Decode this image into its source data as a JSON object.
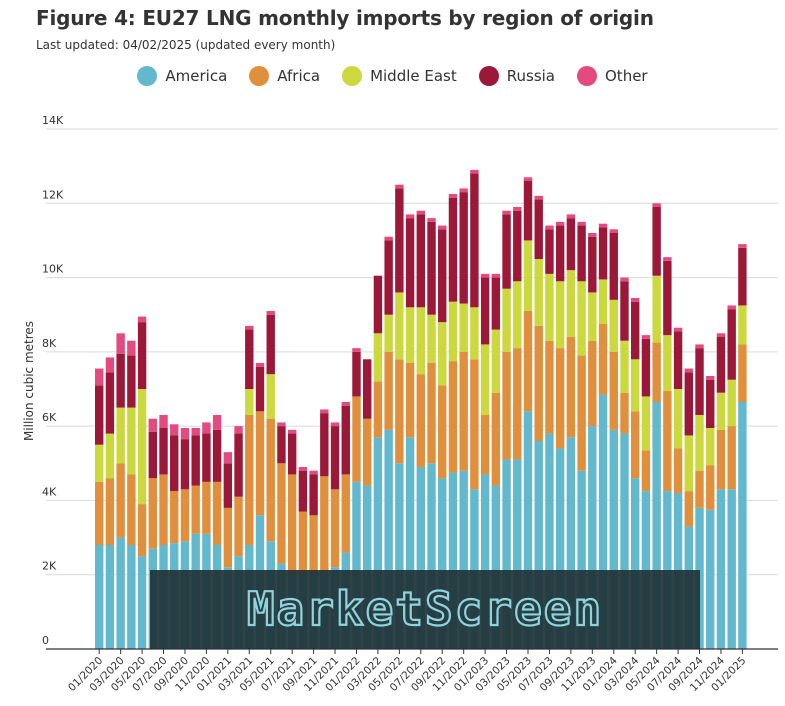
{
  "title": "Figure 4: EU27 LNG monthly imports by region of origin",
  "subtitle": "Last updated: 04/02/2025 (updated every month)",
  "watermark": "MarketScreen",
  "colors": {
    "America": "#62b8cc",
    "Africa": "#e08f3c",
    "Middle East": "#cbd83e",
    "Russia": "#9c1838",
    "Other": "#e34a80",
    "grid": "#d9d9d9",
    "axis": "#333333",
    "watermark_bg": "#1f3337",
    "watermark_text": "#8fd3dc"
  },
  "legend": [
    {
      "label": "America",
      "color": "#62b8cc"
    },
    {
      "label": "Africa",
      "color": "#e08f3c"
    },
    {
      "label": "Middle East",
      "color": "#cbd83e"
    },
    {
      "label": "Russia",
      "color": "#9c1838"
    },
    {
      "label": "Other",
      "color": "#e34a80"
    }
  ],
  "chart_data": {
    "type": "bar",
    "stacked": true,
    "title": "Figure 4: EU27 LNG monthly imports by region of origin",
    "xlabel": "",
    "ylabel": "Million cubic metres",
    "ylim": [
      0,
      14000
    ],
    "yticks": [
      0,
      2000,
      4000,
      6000,
      8000,
      10000,
      12000,
      14000
    ],
    "ytick_labels": [
      "0",
      "2K",
      "4K",
      "6K",
      "8K",
      "10K",
      "12K",
      "14K"
    ],
    "grid": true,
    "legend_position": "top",
    "categories": [
      "01/2020",
      "02/2020",
      "03/2020",
      "04/2020",
      "05/2020",
      "06/2020",
      "07/2020",
      "08/2020",
      "09/2020",
      "10/2020",
      "11/2020",
      "12/2020",
      "01/2021",
      "02/2021",
      "03/2021",
      "04/2021",
      "05/2021",
      "06/2021",
      "07/2021",
      "08/2021",
      "09/2021",
      "10/2021",
      "11/2021",
      "12/2021",
      "01/2022",
      "02/2022",
      "03/2022",
      "04/2022",
      "05/2022",
      "06/2022",
      "07/2022",
      "08/2022",
      "09/2022",
      "10/2022",
      "11/2022",
      "12/2022",
      "01/2023",
      "02/2023",
      "03/2023",
      "04/2023",
      "05/2023",
      "06/2023",
      "07/2023",
      "08/2023",
      "09/2023",
      "10/2023",
      "11/2023",
      "12/2023",
      "01/2024",
      "02/2024",
      "03/2024",
      "04/2024",
      "05/2024",
      "06/2024",
      "07/2024",
      "08/2024",
      "09/2024",
      "10/2024",
      "11/2024",
      "12/2024",
      "01/2025"
    ],
    "x_tick_labels": [
      "01/2020",
      "03/2020",
      "05/2020",
      "07/2020",
      "09/2020",
      "11/2020",
      "01/2021",
      "03/2021",
      "05/2021",
      "07/2021",
      "09/2021",
      "11/2021",
      "01/2022",
      "03/2022",
      "05/2022",
      "07/2022",
      "09/2022",
      "11/2022",
      "01/2023",
      "03/2023",
      "05/2023",
      "07/2023",
      "09/2023",
      "11/2023",
      "01/2024",
      "03/2024",
      "05/2024",
      "07/2024",
      "09/2024",
      "11/2024",
      "01/2025"
    ],
    "series": [
      {
        "name": "America",
        "values": [
          2800,
          2800,
          3000,
          2800,
          2500,
          2700,
          2800,
          2850,
          2900,
          3100,
          3100,
          2800,
          2200,
          2500,
          2800,
          3600,
          2900,
          2300,
          2000,
          2000,
          2000,
          2050,
          2200,
          2600,
          4500,
          4400,
          5700,
          5900,
          5000,
          5700,
          4900,
          5000,
          4600,
          4750,
          4800,
          4300,
          4700,
          4400,
          5100,
          5100,
          6400,
          5600,
          5800,
          5400,
          5700,
          4800,
          6000,
          6850,
          5900,
          5800,
          4600,
          4250,
          6650,
          4250,
          4200,
          3300,
          3800,
          3750,
          4300,
          4300,
          6650
        ]
      },
      {
        "name": "Africa",
        "values": [
          1700,
          1800,
          2000,
          1900,
          1400,
          1900,
          1900,
          1400,
          1400,
          1300,
          1400,
          1700,
          1600,
          1600,
          3500,
          2800,
          3300,
          2700,
          2700,
          1700,
          1600,
          2600,
          2100,
          2100,
          2300,
          1800,
          1500,
          2100,
          2800,
          2000,
          2500,
          2700,
          2500,
          3000,
          3200,
          3500,
          1600,
          2500,
          2900,
          3000,
          2700,
          3100,
          2500,
          2700,
          2700,
          3100,
          2300,
          1900,
          2100,
          1100,
          1800,
          1100,
          1600,
          2700,
          1200,
          950,
          1000,
          1200,
          1600,
          1700,
          1550
        ]
      },
      {
        "name": "Middle East",
        "values": [
          1000,
          1200,
          1500,
          1800,
          3100,
          0,
          0,
          0,
          0,
          0,
          0,
          0,
          0,
          0,
          700,
          0,
          1200,
          0,
          0,
          0,
          0,
          0,
          0,
          0,
          0,
          0,
          1300,
          1000,
          1800,
          1500,
          1800,
          1300,
          1700,
          1600,
          1300,
          1400,
          1900,
          1700,
          1700,
          1800,
          1900,
          1800,
          1800,
          1800,
          1800,
          2000,
          1300,
          1200,
          1400,
          1400,
          1400,
          1450,
          1800,
          1500,
          1600,
          1500,
          1500,
          1000,
          1000,
          1250,
          1050
        ]
      },
      {
        "name": "Russia",
        "values": [
          1600,
          1650,
          1450,
          1400,
          1800,
          1250,
          1250,
          1500,
          1350,
          1350,
          1300,
          1400,
          1200,
          1700,
          1600,
          1200,
          1600,
          1000,
          1100,
          1100,
          1100,
          1700,
          1700,
          1850,
          1200,
          1600,
          1550,
          2000,
          2800,
          2400,
          2500,
          2500,
          2500,
          2800,
          3000,
          3600,
          1800,
          1400,
          2000,
          1900,
          1600,
          1600,
          1200,
          1500,
          1400,
          1500,
          1500,
          1400,
          1800,
          1600,
          1550,
          1550,
          1850,
          2000,
          1550,
          1700,
          1800,
          1300,
          1500,
          1900,
          1550
        ]
      },
      {
        "name": "Other",
        "values": [
          450,
          400,
          550,
          400,
          150,
          350,
          350,
          300,
          300,
          200,
          300,
          400,
          300,
          200,
          100,
          100,
          100,
          100,
          100,
          100,
          100,
          100,
          100,
          100,
          100,
          0,
          0,
          100,
          100,
          100,
          100,
          100,
          100,
          100,
          100,
          100,
          100,
          100,
          100,
          100,
          100,
          100,
          100,
          100,
          100,
          100,
          100,
          100,
          100,
          100,
          100,
          100,
          100,
          100,
          100,
          100,
          100,
          100,
          100,
          100,
          100
        ]
      }
    ]
  }
}
